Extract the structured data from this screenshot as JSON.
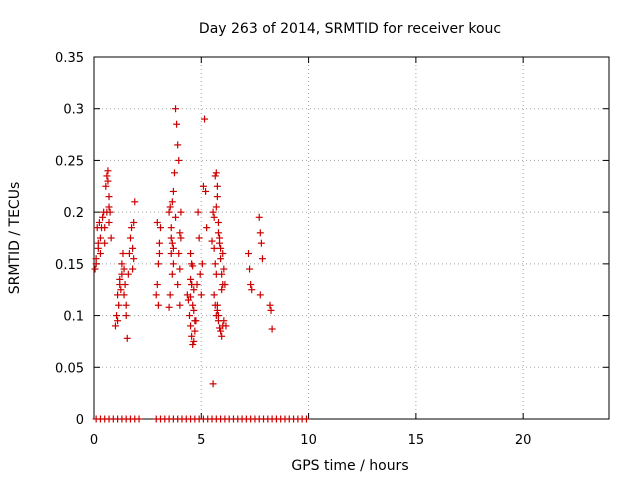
{
  "chart_data": {
    "type": "scatter",
    "title": "Day 263 of 2014, SRMTID for receiver kouc",
    "xlabel": "GPS time / hours",
    "ylabel": "SRMTID / TECUs",
    "xlim": [
      0,
      24
    ],
    "ylim": [
      0,
      0.35
    ],
    "xticks": [
      0,
      5,
      10,
      15,
      20
    ],
    "xtick_labels": [
      "0",
      "5",
      "10",
      "15",
      "20"
    ],
    "yticks": [
      0,
      0.05,
      0.1,
      0.15,
      0.2,
      0.25,
      0.3,
      0.35
    ],
    "ytick_labels": [
      "0",
      "0.05",
      "0.1",
      "0.15",
      "0.2",
      "0.25",
      "0.3",
      "0.35"
    ],
    "grid": true,
    "marker": "+",
    "color": "#cc0000",
    "series": [
      {
        "name": "SRMTID",
        "x": [
          0.05,
          0.1,
          0.15,
          0.2,
          0.25,
          0.3,
          0.35,
          0.4,
          0.45,
          0.5,
          0.55,
          0.6,
          0.65,
          0.7,
          0.7,
          0.75,
          0.8,
          0.1,
          0.2,
          0.3,
          0.5,
          0.6,
          0.65,
          0.7,
          1.0,
          1.05,
          1.1,
          1.15,
          1.2,
          1.25,
          1.3,
          1.35,
          1.4,
          1.45,
          1.5,
          1.55,
          1.1,
          1.2,
          1.3,
          1.4,
          1.5,
          1.6,
          1.65,
          1.7,
          1.75,
          1.8,
          1.85,
          1.9,
          1.8,
          1.85,
          2.9,
          2.95,
          3.0,
          3.05,
          3.1,
          2.95,
          3.0,
          3.05,
          3.5,
          3.55,
          3.6,
          3.65,
          3.7,
          3.75,
          3.8,
          3.6,
          3.65,
          3.7,
          3.55,
          3.5,
          3.6,
          3.65,
          3.7,
          3.8,
          3.85,
          3.9,
          3.95,
          4.0,
          4.05,
          3.95,
          4.0,
          3.9,
          4.0,
          4.05,
          4.35,
          4.4,
          4.45,
          4.5,
          4.55,
          4.6,
          4.65,
          4.7,
          4.75,
          4.8,
          4.85,
          4.9,
          4.95,
          5.0,
          5.05,
          5.1,
          5.15,
          5.2,
          5.25,
          4.5,
          4.55,
          4.6,
          4.65,
          4.7,
          4.5,
          4.55,
          4.6,
          4.65,
          4.5,
          4.55,
          5.5,
          5.55,
          5.6,
          5.65,
          5.7,
          5.75,
          5.8,
          5.85,
          5.9,
          5.95,
          6.0,
          6.05,
          6.1,
          6.15,
          5.6,
          5.65,
          5.7,
          5.75,
          5.8,
          5.85,
          5.9,
          5.95,
          6.0,
          6.05,
          5.7,
          5.75,
          5.8,
          5.85,
          5.9,
          5.95,
          6.0,
          5.65,
          5.7,
          5.75,
          5.8,
          5.55,
          5.6,
          7.2,
          7.25,
          7.3,
          7.35,
          7.7,
          7.75,
          7.8,
          7.85,
          7.75,
          8.2,
          8.25,
          8.3,
          0.1,
          0.3,
          0.5,
          0.7,
          0.9,
          1.1,
          1.3,
          1.5,
          1.7,
          1.9,
          2.1,
          2.9,
          3.1,
          3.3,
          3.5,
          3.7,
          3.9,
          4.1,
          4.3,
          4.5,
          4.7,
          4.9,
          5.1,
          5.3,
          5.5,
          5.7,
          5.9,
          6.1,
          6.3,
          6.5,
          6.7,
          6.9,
          7.1,
          7.3,
          7.5,
          7.7,
          7.9,
          8.1,
          8.3,
          8.5,
          8.7,
          8.9,
          9.1,
          9.3,
          9.5,
          9.7,
          9.9
        ],
        "y": [
          0.145,
          0.15,
          0.185,
          0.17,
          0.19,
          0.16,
          0.185,
          0.195,
          0.2,
          0.185,
          0.225,
          0.235,
          0.23,
          0.215,
          0.19,
          0.2,
          0.175,
          0.155,
          0.165,
          0.175,
          0.17,
          0.2,
          0.24,
          0.205,
          0.09,
          0.1,
          0.12,
          0.11,
          0.135,
          0.125,
          0.15,
          0.16,
          0.145,
          0.13,
          0.1,
          0.078,
          0.095,
          0.13,
          0.14,
          0.12,
          0.11,
          0.14,
          0.16,
          0.175,
          0.185,
          0.165,
          0.19,
          0.21,
          0.145,
          0.155,
          0.12,
          0.13,
          0.15,
          0.17,
          0.185,
          0.19,
          0.11,
          0.16,
          0.2,
          0.205,
          0.175,
          0.21,
          0.22,
          0.238,
          0.195,
          0.16,
          0.14,
          0.15,
          0.12,
          0.108,
          0.185,
          0.17,
          0.165,
          0.3,
          0.285,
          0.265,
          0.25,
          0.18,
          0.175,
          0.16,
          0.145,
          0.13,
          0.11,
          0.2,
          0.12,
          0.115,
          0.1,
          0.09,
          0.08,
          0.072,
          0.075,
          0.085,
          0.095,
          0.13,
          0.2,
          0.175,
          0.14,
          0.12,
          0.15,
          0.225,
          0.29,
          0.22,
          0.185,
          0.135,
          0.13,
          0.11,
          0.105,
          0.095,
          0.16,
          0.15,
          0.148,
          0.125,
          0.118,
          0.13,
          0.172,
          0.2,
          0.195,
          0.235,
          0.238,
          0.225,
          0.19,
          0.17,
          0.155,
          0.14,
          0.16,
          0.145,
          0.13,
          0.09,
          0.12,
          0.11,
          0.1,
          0.105,
          0.095,
          0.088,
          0.085,
          0.08,
          0.09,
          0.095,
          0.205,
          0.215,
          0.18,
          0.175,
          0.165,
          0.125,
          0.13,
          0.15,
          0.14,
          0.11,
          0.1,
          0.034,
          0.165,
          0.16,
          0.145,
          0.13,
          0.125,
          0.195,
          0.18,
          0.17,
          0.155,
          0.12,
          0.11,
          0.105,
          0.087,
          0,
          0,
          0,
          0,
          0,
          0,
          0,
          0,
          0,
          0,
          0,
          0,
          0,
          0,
          0,
          0,
          0,
          0,
          0,
          0,
          0,
          0,
          0,
          0,
          0,
          0,
          0,
          0,
          0,
          0,
          0,
          0,
          0,
          0,
          0,
          0,
          0,
          0,
          0,
          0,
          0,
          0,
          0,
          0,
          0,
          0,
          0
        ]
      }
    ]
  }
}
